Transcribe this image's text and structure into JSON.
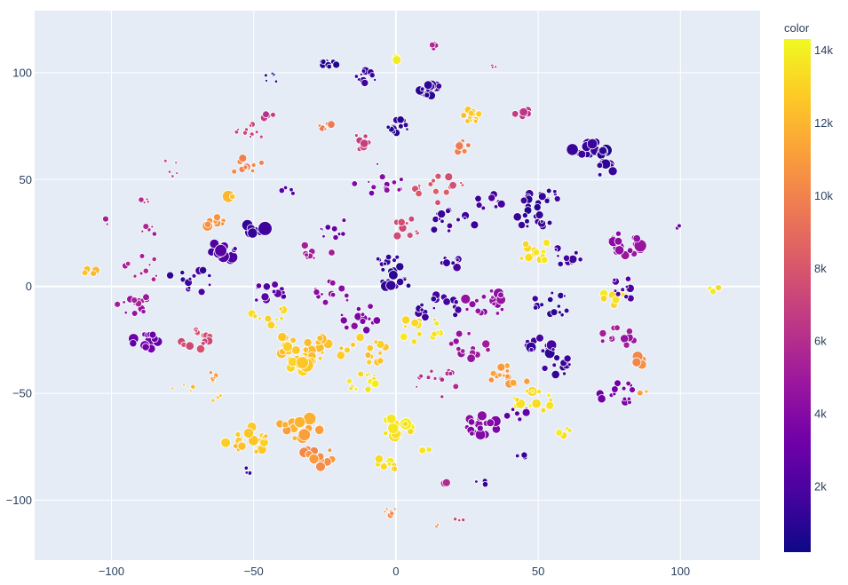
{
  "colors": {
    "plot_bg": "#e5ecf6",
    "grid": "#ffffff",
    "tick_text": "#2a3f5f",
    "marker_edge": "#ffffff",
    "colorscale": [
      "#0d0887",
      "#46039f",
      "#7201a8",
      "#9c179e",
      "#bd3786",
      "#d8576b",
      "#ed7953",
      "#fb9f3a",
      "#fdca26",
      "#f0f921"
    ]
  },
  "chart_data": {
    "type": "scatter",
    "title": "",
    "xlabel": "",
    "ylabel": "",
    "xlim": [
      -127,
      128
    ],
    "ylim": [
      -128,
      129
    ],
    "grid": true,
    "x_ticks": [
      -100,
      -50,
      0,
      50,
      100
    ],
    "y_ticks": [
      -100,
      -50,
      0,
      50,
      100
    ],
    "x_tick_labels": [
      "−100",
      "−50",
      "0",
      "50",
      "100"
    ],
    "y_tick_labels": [
      "−100",
      "−50",
      "0",
      "50",
      "100"
    ],
    "colorbar": {
      "title": "color",
      "range": [
        200,
        14300
      ],
      "ticks": [
        2000,
        4000,
        6000,
        8000,
        10000,
        12000,
        14000
      ],
      "tick_labels": [
        "2k",
        "4k",
        "6k",
        "8k",
        "10k",
        "12k",
        "14k"
      ]
    },
    "clusters": [
      {
        "x": 1,
        "y": 108,
        "c": 14000,
        "n": 3,
        "r": 3,
        "s": 5
      },
      {
        "x": 13,
        "y": 112,
        "c": 5500,
        "n": 4,
        "r": 2,
        "s": 3
      },
      {
        "x": -23,
        "y": 104,
        "c": 1000,
        "n": 8,
        "r": 3,
        "s": 4
      },
      {
        "x": -43,
        "y": 98,
        "c": 1000,
        "n": 5,
        "r": 4,
        "s": 2
      },
      {
        "x": -10,
        "y": 98,
        "c": 1200,
        "n": 10,
        "r": 4,
        "s": 4
      },
      {
        "x": 12,
        "y": 92,
        "c": 1100,
        "n": 18,
        "r": 4,
        "s": 5
      },
      {
        "x": 35,
        "y": 103,
        "c": 5500,
        "n": 3,
        "r": 2,
        "s": 2
      },
      {
        "x": 1,
        "y": 75,
        "c": 1000,
        "n": 12,
        "r": 4,
        "s": 4
      },
      {
        "x": 27,
        "y": 80,
        "c": 12500,
        "n": 12,
        "r": 4,
        "s": 4
      },
      {
        "x": 44,
        "y": 81,
        "c": 6500,
        "n": 10,
        "r": 3,
        "s": 4
      },
      {
        "x": -45,
        "y": 80,
        "c": 6500,
        "n": 4,
        "r": 2,
        "s": 4
      },
      {
        "x": -24,
        "y": 75,
        "c": 10000,
        "n": 6,
        "r": 3,
        "s": 4
      },
      {
        "x": -52,
        "y": 72,
        "c": 7000,
        "n": 10,
        "r": 6,
        "s": 3
      },
      {
        "x": -13,
        "y": 68,
        "c": 7000,
        "n": 10,
        "r": 5,
        "s": 4
      },
      {
        "x": 23,
        "y": 66,
        "c": 10000,
        "n": 8,
        "r": 4,
        "s": 4
      },
      {
        "x": -52,
        "y": 56,
        "c": 10000,
        "n": 10,
        "r": 6,
        "s": 4
      },
      {
        "x": -80,
        "y": 55,
        "c": 7000,
        "n": 5,
        "r": 5,
        "s": 2
      },
      {
        "x": 68,
        "y": 64,
        "c": 1100,
        "n": 18,
        "r": 6,
        "s": 6
      },
      {
        "x": 73,
        "y": 55,
        "c": 1500,
        "n": 8,
        "r": 4,
        "s": 5
      },
      {
        "x": -5,
        "y": 50,
        "c": 4000,
        "n": 14,
        "r": 10,
        "s": 3
      },
      {
        "x": 15,
        "y": 46,
        "c": 8000,
        "n": 16,
        "r": 9,
        "s": 4
      },
      {
        "x": -58,
        "y": 42,
        "c": 12500,
        "n": 3,
        "r": 2,
        "s": 7
      },
      {
        "x": -88,
        "y": 40,
        "c": 6000,
        "n": 4,
        "r": 2,
        "s": 3
      },
      {
        "x": -38,
        "y": 44,
        "c": 2500,
        "n": 4,
        "r": 3,
        "s": 3
      },
      {
        "x": 33,
        "y": 40,
        "c": 1800,
        "n": 10,
        "r": 5,
        "s": 4
      },
      {
        "x": 50,
        "y": 42,
        "c": 1200,
        "n": 16,
        "r": 7,
        "s": 4
      },
      {
        "x": -64,
        "y": 30,
        "c": 10500,
        "n": 8,
        "r": 4,
        "s": 5
      },
      {
        "x": -49,
        "y": 27,
        "c": 1300,
        "n": 8,
        "r": 4,
        "s": 7
      },
      {
        "x": 4,
        "y": 27,
        "c": 7500,
        "n": 10,
        "r": 6,
        "s": 4
      },
      {
        "x": 20,
        "y": 30,
        "c": 1500,
        "n": 14,
        "r": 8,
        "s": 4
      },
      {
        "x": 48,
        "y": 31,
        "c": 1200,
        "n": 14,
        "r": 7,
        "s": 4
      },
      {
        "x": -102,
        "y": 30,
        "c": 5000,
        "n": 2,
        "r": 2,
        "s": 3
      },
      {
        "x": -88,
        "y": 26,
        "c": 5500,
        "n": 5,
        "r": 4,
        "s": 3
      },
      {
        "x": -20,
        "y": 28,
        "c": 3000,
        "n": 10,
        "r": 8,
        "s": 3
      },
      {
        "x": -62,
        "y": 16,
        "c": 2000,
        "n": 14,
        "r": 6,
        "s": 6
      },
      {
        "x": 80,
        "y": 20,
        "c": 4500,
        "n": 18,
        "r": 7,
        "s": 6
      },
      {
        "x": 49,
        "y": 17,
        "c": 13500,
        "n": 14,
        "r": 7,
        "s": 4
      },
      {
        "x": 60,
        "y": 14,
        "c": 1500,
        "n": 10,
        "r": 6,
        "s": 4
      },
      {
        "x": 99,
        "y": 28,
        "c": 3000,
        "n": 2,
        "r": 1,
        "s": 2
      },
      {
        "x": -28,
        "y": 16,
        "c": 5000,
        "n": 8,
        "r": 6,
        "s": 4
      },
      {
        "x": -2,
        "y": 10,
        "c": 1200,
        "n": 12,
        "r": 6,
        "s": 4
      },
      {
        "x": 19,
        "y": 10,
        "c": 1500,
        "n": 8,
        "r": 5,
        "s": 4
      },
      {
        "x": -108,
        "y": 7,
        "c": 12500,
        "n": 4,
        "r": 3,
        "s": 4
      },
      {
        "x": -88,
        "y": 8,
        "c": 5500,
        "n": 10,
        "r": 8,
        "s": 3
      },
      {
        "x": -72,
        "y": 3,
        "c": 1500,
        "n": 14,
        "r": 8,
        "s": 4
      },
      {
        "x": -45,
        "y": -2,
        "c": 2500,
        "n": 12,
        "r": 7,
        "s": 4
      },
      {
        "x": -22,
        "y": -3,
        "c": 4500,
        "n": 12,
        "r": 7,
        "s": 4
      },
      {
        "x": 0,
        "y": 2,
        "c": 1000,
        "n": 12,
        "r": 5,
        "s": 5
      },
      {
        "x": 15,
        "y": -10,
        "c": 1500,
        "n": 18,
        "r": 8,
        "s": 4
      },
      {
        "x": 32,
        "y": -8,
        "c": 4500,
        "n": 18,
        "r": 8,
        "s": 5
      },
      {
        "x": 55,
        "y": -8,
        "c": 1200,
        "n": 16,
        "r": 8,
        "s": 4
      },
      {
        "x": 76,
        "y": -6,
        "c": 13500,
        "n": 8,
        "r": 5,
        "s": 4
      },
      {
        "x": 82,
        "y": 0,
        "c": 1800,
        "n": 16,
        "r": 7,
        "s": 4
      },
      {
        "x": 112,
        "y": -1,
        "c": 13500,
        "n": 3,
        "r": 2,
        "s": 3
      },
      {
        "x": -92,
        "y": -8,
        "c": 5000,
        "n": 14,
        "r": 6,
        "s": 4
      },
      {
        "x": -44,
        "y": -14,
        "c": 13000,
        "n": 10,
        "r": 7,
        "s": 4
      },
      {
        "x": -12,
        "y": -15,
        "c": 4000,
        "n": 14,
        "r": 8,
        "s": 4
      },
      {
        "x": 8,
        "y": -20,
        "c": 13500,
        "n": 14,
        "r": 8,
        "s": 4
      },
      {
        "x": -88,
        "y": -26,
        "c": 3000,
        "n": 14,
        "r": 5,
        "s": 5
      },
      {
        "x": -70,
        "y": -25,
        "c": 7500,
        "n": 14,
        "r": 6,
        "s": 4
      },
      {
        "x": -33,
        "y": -28,
        "c": 12500,
        "n": 26,
        "r": 10,
        "s": 5
      },
      {
        "x": -12,
        "y": -30,
        "c": 12500,
        "n": 16,
        "r": 9,
        "s": 4
      },
      {
        "x": 25,
        "y": -28,
        "c": 5000,
        "n": 14,
        "r": 8,
        "s": 4
      },
      {
        "x": 50,
        "y": -28,
        "c": 1500,
        "n": 12,
        "r": 6,
        "s": 5
      },
      {
        "x": 78,
        "y": -24,
        "c": 5000,
        "n": 12,
        "r": 6,
        "s": 4
      },
      {
        "x": 85,
        "y": -35,
        "c": 10500,
        "n": 6,
        "r": 3,
        "s": 5
      },
      {
        "x": -62,
        "y": -42,
        "c": 10500,
        "n": 6,
        "r": 4,
        "s": 3
      },
      {
        "x": -34,
        "y": -36,
        "c": 13000,
        "n": 10,
        "r": 5,
        "s": 7
      },
      {
        "x": -12,
        "y": -44,
        "c": 13500,
        "n": 12,
        "r": 6,
        "s": 4
      },
      {
        "x": 15,
        "y": -46,
        "c": 6000,
        "n": 14,
        "r": 9,
        "s": 3
      },
      {
        "x": 40,
        "y": -42,
        "c": 11000,
        "n": 14,
        "r": 7,
        "s": 4
      },
      {
        "x": 48,
        "y": -54,
        "c": 13500,
        "n": 14,
        "r": 7,
        "s": 5
      },
      {
        "x": 58,
        "y": -38,
        "c": 1500,
        "n": 10,
        "r": 6,
        "s": 4
      },
      {
        "x": 78,
        "y": -50,
        "c": 3500,
        "n": 14,
        "r": 7,
        "s": 4
      },
      {
        "x": 87,
        "y": -50,
        "c": 11500,
        "n": 2,
        "r": 2,
        "s": 4
      },
      {
        "x": -75,
        "y": -48,
        "c": 12500,
        "n": 4,
        "r": 4,
        "s": 3
      },
      {
        "x": -62,
        "y": -52,
        "c": 12500,
        "n": 3,
        "r": 3,
        "s": 3
      },
      {
        "x": 30,
        "y": -65,
        "c": 4000,
        "n": 18,
        "r": 6,
        "s": 5
      },
      {
        "x": 43,
        "y": -60,
        "c": 2500,
        "n": 6,
        "r": 4,
        "s": 4
      },
      {
        "x": 0,
        "y": -66,
        "c": 13500,
        "n": 18,
        "r": 6,
        "s": 6
      },
      {
        "x": -33,
        "y": -65,
        "c": 11500,
        "n": 16,
        "r": 8,
        "s": 6
      },
      {
        "x": -52,
        "y": -72,
        "c": 12500,
        "n": 20,
        "r": 8,
        "s": 5
      },
      {
        "x": -28,
        "y": -80,
        "c": 10500,
        "n": 14,
        "r": 7,
        "s": 5
      },
      {
        "x": -52,
        "y": -86,
        "c": 1300,
        "n": 3,
        "r": 2,
        "s": 3
      },
      {
        "x": -5,
        "y": -83,
        "c": 13500,
        "n": 8,
        "r": 6,
        "s": 4
      },
      {
        "x": 10,
        "y": -75,
        "c": 13500,
        "n": 4,
        "r": 3,
        "s": 4
      },
      {
        "x": 44,
        "y": -79,
        "c": 1300,
        "n": 4,
        "r": 2,
        "s": 4
      },
      {
        "x": 30,
        "y": -92,
        "c": 1300,
        "n": 3,
        "r": 2,
        "s": 4
      },
      {
        "x": 18,
        "y": -92,
        "c": 5500,
        "n": 2,
        "r": 1,
        "s": 4
      },
      {
        "x": 59,
        "y": -68,
        "c": 13500,
        "n": 4,
        "r": 3,
        "s": 4
      },
      {
        "x": -2,
        "y": -106,
        "c": 10500,
        "n": 6,
        "r": 3,
        "s": 3
      },
      {
        "x": 22,
        "y": -110,
        "c": 7000,
        "n": 3,
        "r": 2,
        "s": 3
      },
      {
        "x": 15,
        "y": -112,
        "c": 10500,
        "n": 2,
        "r": 1,
        "s": 2
      }
    ]
  }
}
